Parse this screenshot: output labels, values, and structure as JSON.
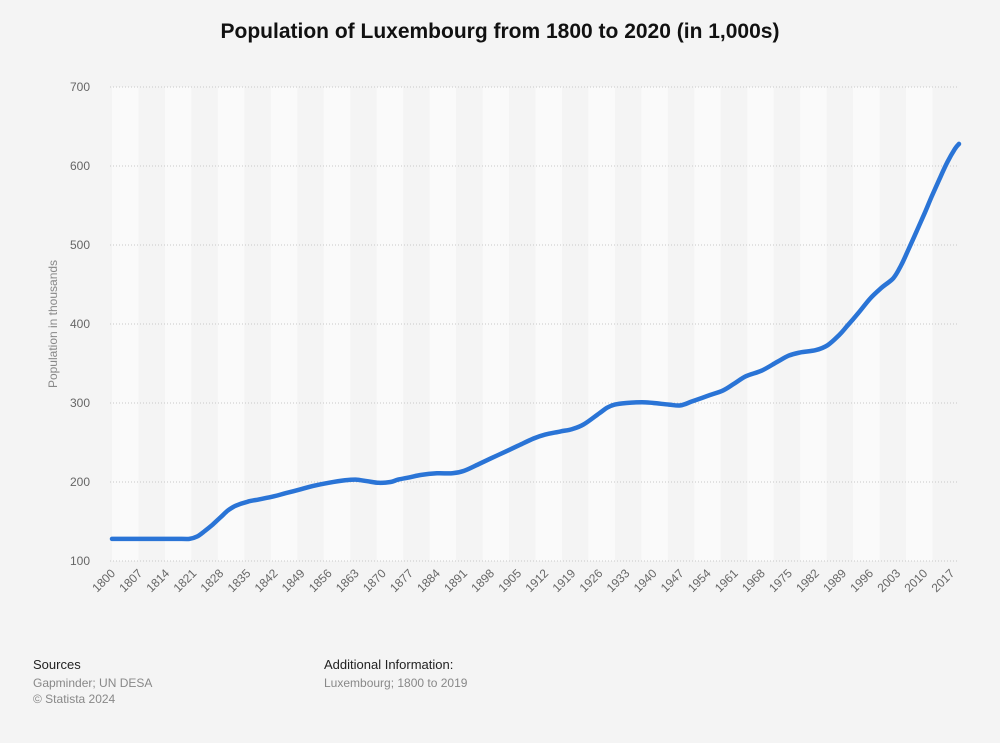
{
  "chart_data": {
    "type": "line",
    "title": "Population of Luxembourg from 1800 to 2020 (in 1,000s)",
    "xlabel": "",
    "ylabel": "Population in thousands",
    "xlim": [
      1800,
      2019
    ],
    "ylim": [
      100,
      700
    ],
    "y_ticks": [
      100,
      200,
      300,
      400,
      500,
      600,
      700
    ],
    "x_ticks": [
      1800,
      1807,
      1814,
      1821,
      1828,
      1835,
      1842,
      1849,
      1856,
      1863,
      1870,
      1877,
      1884,
      1891,
      1898,
      1905,
      1912,
      1919,
      1926,
      1933,
      1940,
      1947,
      1954,
      1961,
      1968,
      1975,
      1982,
      1989,
      1996,
      2003,
      2010,
      2017
    ],
    "grid": "horizontal dotted lines, alternating vertical bands",
    "legend": "none",
    "series": [
      {
        "color": "#2a74d6",
        "x": [
          1800,
          1810,
          1818,
          1820,
          1822,
          1824,
          1826,
          1828,
          1830,
          1832,
          1835,
          1838,
          1842,
          1845,
          1849,
          1852,
          1856,
          1860,
          1863,
          1866,
          1869,
          1872,
          1874,
          1877,
          1880,
          1884,
          1888,
          1891,
          1895,
          1898,
          1902,
          1905,
          1909,
          1912,
          1916,
          1919,
          1922,
          1926,
          1928,
          1930,
          1933,
          1937,
          1940,
          1944,
          1947,
          1950,
          1954,
          1958,
          1961,
          1964,
          1968,
          1972,
          1975,
          1978,
          1982,
          1985,
          1988,
          1990,
          1993,
          1996,
          1999,
          2002,
          2004,
          2006,
          2008,
          2010,
          2012,
          2014,
          2016,
          2018,
          2019
        ],
        "y": [
          128,
          128,
          128,
          128,
          131,
          138,
          146,
          155,
          164,
          170,
          175,
          178,
          182,
          186,
          191,
          195,
          199,
          202,
          203,
          201,
          199,
          200,
          203,
          206,
          209,
          211,
          211,
          214,
          223,
          230,
          239,
          246,
          255,
          260,
          264,
          267,
          273,
          287,
          294,
          298,
          300,
          301,
          300,
          298,
          297,
          302,
          309,
          316,
          325,
          334,
          341,
          352,
          360,
          364,
          367,
          373,
          386,
          397,
          414,
          432,
          446,
          458,
          474,
          495,
          517,
          539,
          562,
          584,
          605,
          622,
          628
        ]
      }
    ]
  },
  "footer": {
    "sources_heading": "Sources",
    "sources_text": "Gapminder; UN DESA",
    "copyright": "© Statista 2024",
    "additional_heading": "Additional Information:",
    "additional_text": "Luxembourg; 1800 to 2019"
  }
}
